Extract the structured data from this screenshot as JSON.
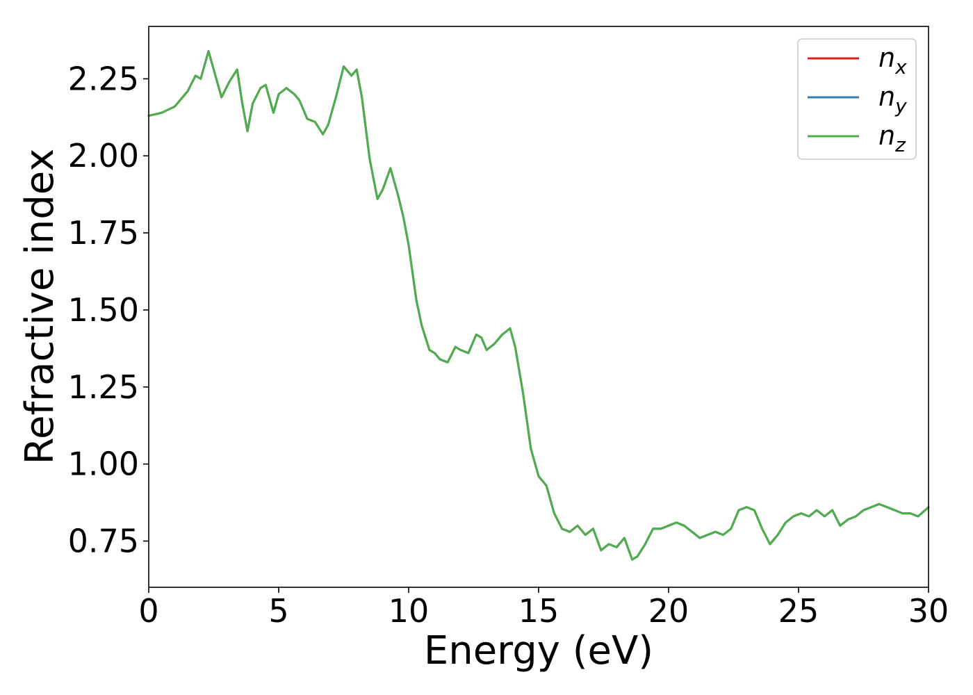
{
  "chart_data": {
    "type": "line",
    "xlabel": "Energy (eV)",
    "ylabel": "Refractive index",
    "xlim": [
      0,
      30
    ],
    "ylim": [
      0.6,
      2.42
    ],
    "xticks": [
      0,
      5,
      10,
      15,
      20,
      25,
      30
    ],
    "xtick_labels": [
      "0",
      "5",
      "10",
      "15",
      "20",
      "25",
      "30"
    ],
    "yticks": [
      0.75,
      1.0,
      1.25,
      1.5,
      1.75,
      2.0,
      2.25
    ],
    "ytick_labels": [
      "0.75",
      "1.00",
      "1.25",
      "1.50",
      "1.75",
      "2.00",
      "2.25"
    ],
    "grid": false,
    "legend_position": "top-right",
    "x": [
      0,
      0.5,
      1.0,
      1.5,
      1.8,
      2.0,
      2.3,
      2.5,
      2.8,
      3.1,
      3.4,
      3.6,
      3.8,
      4.0,
      4.3,
      4.5,
      4.8,
      5.0,
      5.3,
      5.6,
      5.8,
      6.1,
      6.4,
      6.7,
      6.9,
      7.2,
      7.5,
      7.8,
      8.0,
      8.2,
      8.5,
      8.8,
      9.0,
      9.3,
      9.6,
      9.8,
      10.0,
      10.3,
      10.5,
      10.8,
      11.0,
      11.2,
      11.5,
      11.8,
      12.0,
      12.3,
      12.6,
      12.8,
      13.0,
      13.3,
      13.6,
      13.9,
      14.1,
      14.4,
      14.7,
      15.0,
      15.3,
      15.6,
      15.9,
      16.2,
      16.5,
      16.8,
      17.1,
      17.4,
      17.7,
      18.0,
      18.3,
      18.6,
      18.8,
      19.1,
      19.4,
      19.7,
      20.0,
      20.3,
      20.6,
      20.9,
      21.2,
      21.5,
      21.8,
      22.1,
      22.4,
      22.7,
      23.0,
      23.3,
      23.6,
      23.9,
      24.2,
      24.5,
      24.8,
      25.1,
      25.4,
      25.7,
      26.0,
      26.3,
      26.6,
      26.9,
      27.2,
      27.5,
      27.8,
      28.1,
      28.4,
      28.7,
      29.0,
      29.3,
      29.6,
      30.0
    ],
    "series": [
      {
        "name": "n_x",
        "color": "#e41a1c",
        "values": [
          2.13,
          2.14,
          2.16,
          2.21,
          2.26,
          2.25,
          2.34,
          2.28,
          2.19,
          2.24,
          2.28,
          2.17,
          2.08,
          2.17,
          2.22,
          2.23,
          2.14,
          2.2,
          2.22,
          2.2,
          2.18,
          2.12,
          2.11,
          2.07,
          2.1,
          2.19,
          2.29,
          2.26,
          2.28,
          2.19,
          1.99,
          1.86,
          1.89,
          1.96,
          1.87,
          1.8,
          1.71,
          1.53,
          1.45,
          1.37,
          1.36,
          1.34,
          1.33,
          1.38,
          1.37,
          1.36,
          1.42,
          1.41,
          1.37,
          1.39,
          1.42,
          1.44,
          1.38,
          1.23,
          1.05,
          0.96,
          0.93,
          0.84,
          0.79,
          0.78,
          0.8,
          0.77,
          0.79,
          0.72,
          0.74,
          0.73,
          0.76,
          0.69,
          0.7,
          0.74,
          0.79,
          0.79,
          0.8,
          0.81,
          0.8,
          0.78,
          0.76,
          0.77,
          0.78,
          0.77,
          0.79,
          0.85,
          0.86,
          0.85,
          0.79,
          0.74,
          0.77,
          0.81,
          0.83,
          0.84,
          0.83,
          0.85,
          0.83,
          0.85,
          0.8,
          0.82,
          0.83,
          0.85,
          0.86,
          0.87,
          0.86,
          0.85,
          0.84,
          0.84,
          0.83,
          0.86
        ]
      },
      {
        "name": "n_y",
        "color": "#377eb8",
        "values": [
          2.13,
          2.14,
          2.16,
          2.21,
          2.26,
          2.25,
          2.34,
          2.28,
          2.19,
          2.24,
          2.28,
          2.17,
          2.08,
          2.17,
          2.22,
          2.23,
          2.14,
          2.2,
          2.22,
          2.2,
          2.18,
          2.12,
          2.11,
          2.07,
          2.1,
          2.19,
          2.29,
          2.26,
          2.28,
          2.19,
          1.99,
          1.86,
          1.89,
          1.96,
          1.87,
          1.8,
          1.71,
          1.53,
          1.45,
          1.37,
          1.36,
          1.34,
          1.33,
          1.38,
          1.37,
          1.36,
          1.42,
          1.41,
          1.37,
          1.39,
          1.42,
          1.44,
          1.38,
          1.23,
          1.05,
          0.96,
          0.93,
          0.84,
          0.79,
          0.78,
          0.8,
          0.77,
          0.79,
          0.72,
          0.74,
          0.73,
          0.76,
          0.69,
          0.7,
          0.74,
          0.79,
          0.79,
          0.8,
          0.81,
          0.8,
          0.78,
          0.76,
          0.77,
          0.78,
          0.77,
          0.79,
          0.85,
          0.86,
          0.85,
          0.79,
          0.74,
          0.77,
          0.81,
          0.83,
          0.84,
          0.83,
          0.85,
          0.83,
          0.85,
          0.8,
          0.82,
          0.83,
          0.85,
          0.86,
          0.87,
          0.86,
          0.85,
          0.84,
          0.84,
          0.83,
          0.86
        ]
      },
      {
        "name": "n_z",
        "color": "#4daf4a",
        "values": [
          2.13,
          2.14,
          2.16,
          2.21,
          2.26,
          2.25,
          2.34,
          2.28,
          2.19,
          2.24,
          2.28,
          2.17,
          2.08,
          2.17,
          2.22,
          2.23,
          2.14,
          2.2,
          2.22,
          2.2,
          2.18,
          2.12,
          2.11,
          2.07,
          2.1,
          2.19,
          2.29,
          2.26,
          2.28,
          2.19,
          1.99,
          1.86,
          1.89,
          1.96,
          1.87,
          1.8,
          1.71,
          1.53,
          1.45,
          1.37,
          1.36,
          1.34,
          1.33,
          1.38,
          1.37,
          1.36,
          1.42,
          1.41,
          1.37,
          1.39,
          1.42,
          1.44,
          1.38,
          1.23,
          1.05,
          0.96,
          0.93,
          0.84,
          0.79,
          0.78,
          0.8,
          0.77,
          0.79,
          0.72,
          0.74,
          0.73,
          0.76,
          0.69,
          0.7,
          0.74,
          0.79,
          0.79,
          0.8,
          0.81,
          0.8,
          0.78,
          0.76,
          0.77,
          0.78,
          0.77,
          0.79,
          0.85,
          0.86,
          0.85,
          0.79,
          0.74,
          0.77,
          0.81,
          0.83,
          0.84,
          0.83,
          0.85,
          0.83,
          0.85,
          0.8,
          0.82,
          0.83,
          0.85,
          0.86,
          0.87,
          0.86,
          0.85,
          0.84,
          0.84,
          0.83,
          0.86
        ]
      }
    ],
    "legend": [
      {
        "base": "n",
        "sub": "x",
        "color": "#e41a1c"
      },
      {
        "base": "n",
        "sub": "y",
        "color": "#377eb8"
      },
      {
        "base": "n",
        "sub": "z",
        "color": "#4daf4a"
      }
    ]
  }
}
